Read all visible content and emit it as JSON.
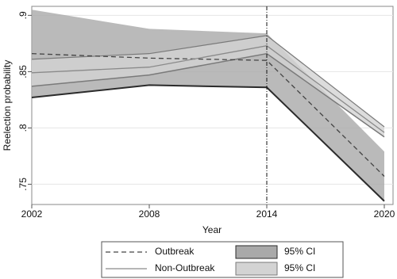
{
  "chart_data": {
    "type": "line",
    "x_label": "Year",
    "y_label": "Reelection probability",
    "x": [
      2002,
      2008,
      2014,
      2020
    ],
    "xlim": [
      2002,
      2020
    ],
    "xticks": [
      2002,
      2008,
      2014,
      2020
    ],
    "ylim": [
      0.732,
      0.908
    ],
    "yticks": [
      {
        "value": 0.75,
        "label": ".75"
      },
      {
        "value": 0.8,
        "label": ".8"
      },
      {
        "value": 0.85,
        "label": ".85"
      },
      {
        "value": 0.9,
        "label": ".9"
      }
    ],
    "grid": true,
    "vline": 2014,
    "series": [
      {
        "name": "Outbreak",
        "color": "#444444",
        "dash": true,
        "values": [
          0.866,
          0.862,
          0.86,
          0.757
        ],
        "ci": {
          "name": "95% CI",
          "color": "#a9a9a9",
          "edge_color": "#2b2b2b",
          "lower": [
            0.827,
            0.838,
            0.836,
            0.735
          ],
          "upper": [
            0.905,
            0.888,
            0.884,
            0.779
          ]
        }
      },
      {
        "name": "Non-Outbreak",
        "color": "#8a8a8a",
        "dash": false,
        "values": [
          0.849,
          0.854,
          0.873,
          0.796
        ],
        "ci": {
          "name": "95% CI",
          "color": "#d3d3d3",
          "edge_color": "#7a7a7a",
          "lower": [
            0.837,
            0.847,
            0.866,
            0.792
          ],
          "upper": [
            0.861,
            0.866,
            0.882,
            0.801
          ]
        }
      }
    ]
  }
}
